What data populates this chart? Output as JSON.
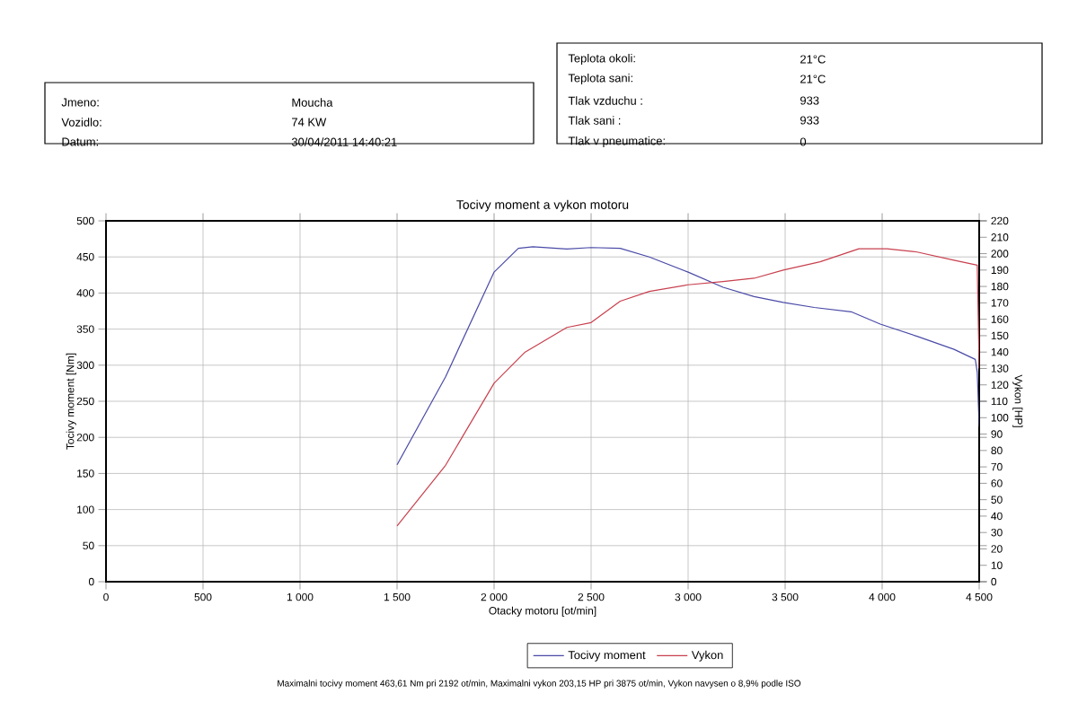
{
  "chart_data": {
    "type": "line",
    "title": "Tocivy moment a vykon motoru",
    "xlabel": "Otacky motoru [ot/min]",
    "ylabel": "Tocivy moment [Nm]",
    "y2label": "Vykon [HP]",
    "xlim": [
      0,
      4500
    ],
    "xticks": [
      0,
      500,
      {
        "value": 1000,
        "label": "1 000"
      },
      {
        "value": 1500,
        "label": "1 500"
      },
      {
        "value": 2000,
        "label": "2 000"
      },
      {
        "value": 2500,
        "label": "2 500"
      },
      {
        "value": 3000,
        "label": "3 000"
      },
      {
        "value": 3500,
        "label": "3 500"
      },
      {
        "value": 4000,
        "label": "4 000"
      },
      {
        "value": 4500,
        "label": "4 500"
      }
    ],
    "ylim": [
      0,
      500
    ],
    "yticks": [
      0,
      50,
      100,
      150,
      200,
      250,
      300,
      350,
      400,
      450,
      500
    ],
    "y2lim": [
      0,
      220
    ],
    "y2ticks": [
      0,
      10,
      20,
      30,
      40,
      50,
      60,
      70,
      80,
      90,
      100,
      110,
      120,
      130,
      140,
      150,
      160,
      170,
      180,
      190,
      200,
      210,
      220
    ],
    "grid": true,
    "legend": "bottom",
    "marker": "none",
    "line_style": "solid",
    "series": [
      {
        "name": "Tocivy moment",
        "color": "#4a4aa8",
        "x": [
          1500,
          1750,
          2000,
          2125,
          2200,
          2375,
          2500,
          2650,
          2800,
          3000,
          3180,
          3340,
          3490,
          3650,
          3840,
          3990,
          4180,
          4370,
          4480,
          4490,
          4500
        ],
        "values": [
          162,
          284,
          429,
          462,
          464,
          461,
          463,
          462,
          450,
          429,
          408,
          395,
          387,
          380,
          374,
          357,
          340,
          322,
          308,
          290,
          215
        ]
      },
      {
        "name": "Vykon",
        "color": "#c8404e",
        "axis": "y2",
        "x": [
          1500,
          1750,
          2000,
          2160,
          2375,
          2500,
          2650,
          2800,
          3000,
          3180,
          3340,
          3490,
          3680,
          3880,
          4025,
          4180,
          4370,
          4490,
          4500
        ],
        "values": [
          34,
          71,
          121,
          140,
          155,
          158,
          171,
          177,
          181,
          183,
          185,
          190,
          195,
          203,
          203,
          201,
          196,
          193,
          130
        ]
      }
    ],
    "annotations": [
      "Jmeno:",
      "Moucha",
      "Vozidlo:",
      "74 KW",
      "Datum:",
      "30/04/2011 14:40:21",
      "Teplota okoli:",
      "21°C",
      "Teplota sani:",
      "21°C",
      "Tlak vzduchu :",
      "933",
      "Tlak sani :",
      "933",
      "Tlak v pneumatice:",
      "0",
      "Maximalni tocivy moment 463,61 Nm pri 2192 ot/min,  Maximalni vykon 203,15 HP pri 3875 ot/min,  Vykon navysen o 8,9% podle ISO"
    ]
  }
}
